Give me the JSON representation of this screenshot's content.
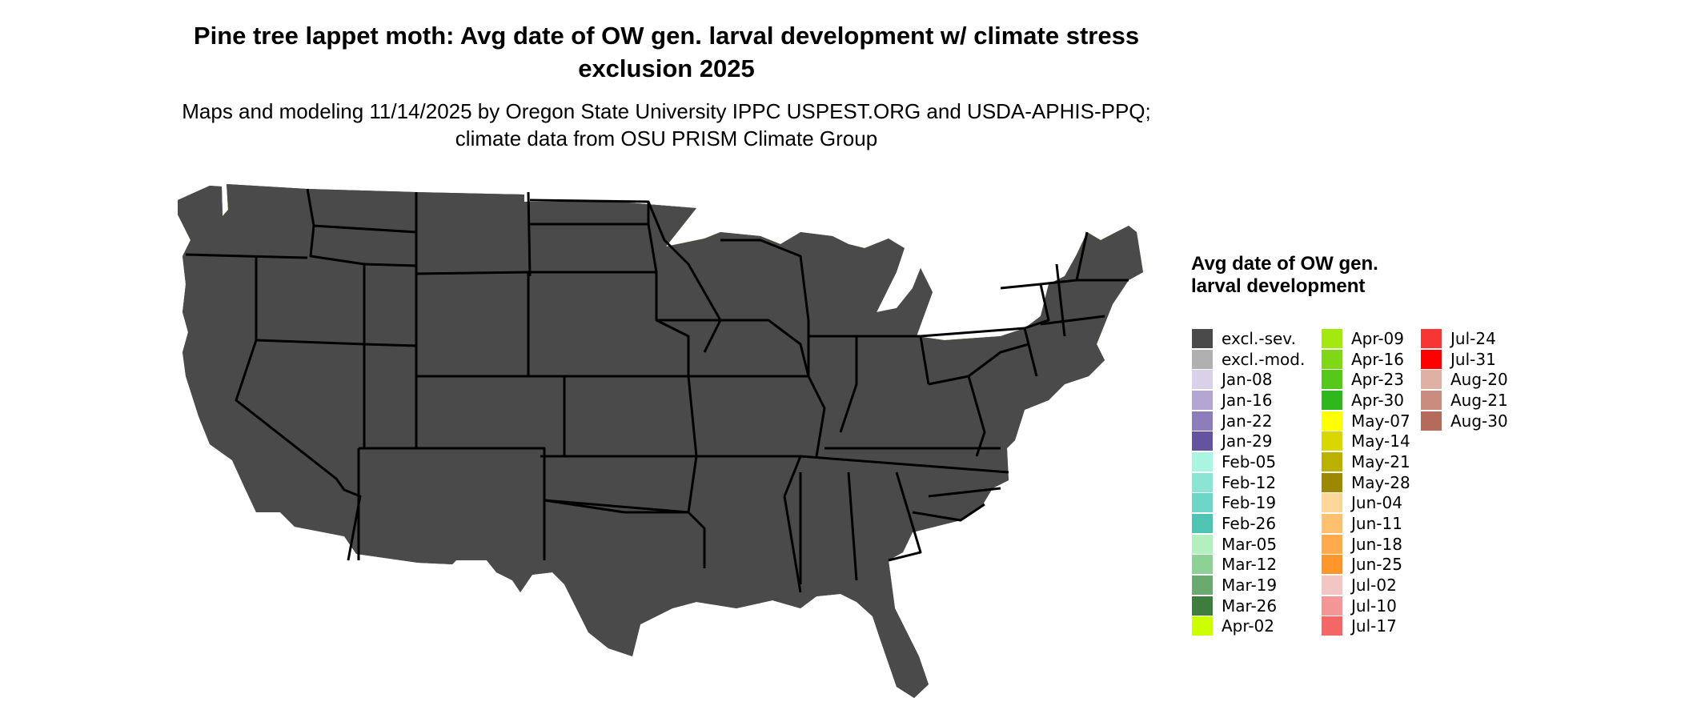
{
  "title": "Pine tree lappet moth: Avg date of OW gen. larval development w/ climate stress exclusion 2025",
  "subtitle": "Maps and modeling 11/14/2025 by Oregon State University IPPC USPEST.ORG and USDA-APHIS-PPQ; climate data from OSU PRISM Climate Group",
  "legend": {
    "title": "Avg date of OW gen. larval development",
    "items": [
      {
        "label": "excl.-sev.",
        "color": "#4a4a4a"
      },
      {
        "label": "excl.-mod.",
        "color": "#b0b0b0"
      },
      {
        "label": "Jan-08",
        "color": "#d9d0ea"
      },
      {
        "label": "Jan-16",
        "color": "#b3a6d3"
      },
      {
        "label": "Jan-22",
        "color": "#8d7ebb"
      },
      {
        "label": "Jan-29",
        "color": "#64539f"
      },
      {
        "label": "Feb-05",
        "color": "#aaf4e2"
      },
      {
        "label": "Feb-12",
        "color": "#8ce4d5"
      },
      {
        "label": "Feb-19",
        "color": "#6dd6c7"
      },
      {
        "label": "Feb-26",
        "color": "#4fc3b4"
      },
      {
        "label": "Mar-05",
        "color": "#b4efc0"
      },
      {
        "label": "Mar-12",
        "color": "#8ed197"
      },
      {
        "label": "Mar-19",
        "color": "#6aa970"
      },
      {
        "label": "Mar-26",
        "color": "#3f7d3f"
      },
      {
        "label": "Apr-02",
        "color": "#ccff00"
      },
      {
        "label": "Apr-09",
        "color": "#a3e80e"
      },
      {
        "label": "Apr-16",
        "color": "#7fd716"
      },
      {
        "label": "Apr-23",
        "color": "#56c81a"
      },
      {
        "label": "Apr-30",
        "color": "#2fb81b"
      },
      {
        "label": "May-07",
        "color": "#ffff00"
      },
      {
        "label": "May-14",
        "color": "#d8d800"
      },
      {
        "label": "May-21",
        "color": "#bcb100"
      },
      {
        "label": "May-28",
        "color": "#9c8900"
      },
      {
        "label": "Jun-04",
        "color": "#ffd699"
      },
      {
        "label": "Jun-11",
        "color": "#ffc170"
      },
      {
        "label": "Jun-18",
        "color": "#ffab4d"
      },
      {
        "label": "Jun-25",
        "color": "#ff962b"
      },
      {
        "label": "Jul-02",
        "color": "#f4c5c5"
      },
      {
        "label": "Jul-10",
        "color": "#f59696"
      },
      {
        "label": "Jul-17",
        "color": "#f46767"
      },
      {
        "label": "Jul-24",
        "color": "#f83535"
      },
      {
        "label": "Jul-31",
        "color": "#ff0000"
      },
      {
        "label": "Aug-20",
        "color": "#dfb1a5"
      },
      {
        "label": "Aug-21",
        "color": "#c98c7e"
      },
      {
        "label": "Aug-30",
        "color": "#b56b5c"
      }
    ]
  },
  "map_colors": {
    "severe": "#4a4a4a",
    "moderate": "#b0b0b0",
    "apr_late": "#2fb81b",
    "apr_mid": "#56c81a",
    "apr_early": "#a3e80e",
    "may": "#ffff00",
    "may_olive": "#d8d800",
    "mar_late": "#3f7d3f",
    "mar_mid": "#8ed197",
    "feb": "#8ce4d5",
    "jun": "#ffc170",
    "aug": "#c98c7e",
    "border": "#000000"
  }
}
